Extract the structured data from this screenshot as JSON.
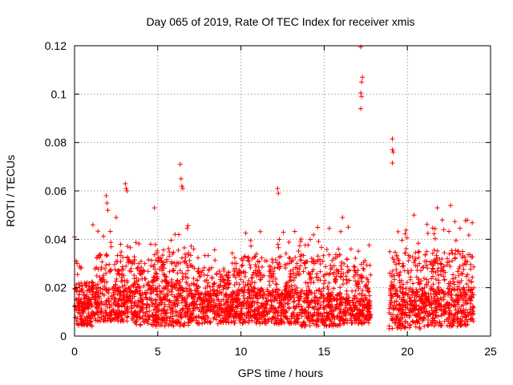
{
  "chart_data": {
    "type": "scatter",
    "title": "Day 065 of 2019, Rate Of TEC Index for receiver xmis",
    "xlabel": "GPS time / hours",
    "ylabel": "ROTI / TECUs",
    "xlim": [
      0,
      25
    ],
    "ylim": [
      0,
      0.12
    ],
    "xticks": [
      0,
      5,
      10,
      15,
      20,
      25
    ],
    "xtick_labels": [
      "0",
      "5",
      "10",
      "15",
      "20",
      "25"
    ],
    "yticks": [
      0,
      0.02,
      0.04,
      0.06,
      0.08,
      0.1,
      0.12
    ],
    "ytick_labels": [
      "0",
      "0.02",
      "0.04",
      "0.06",
      "0.08",
      "0.1",
      "0.12"
    ],
    "grid": true,
    "marker": "plus",
    "color": "#ff0000",
    "series": [
      {
        "name": "ROTI",
        "outliers": [
          [
            0.0,
            0.041
          ],
          [
            0.1,
            0.031
          ],
          [
            0.15,
            0.03
          ],
          [
            1.1,
            0.046
          ],
          [
            1.9,
            0.058
          ],
          [
            1.95,
            0.055
          ],
          [
            2.0,
            0.052
          ],
          [
            2.5,
            0.049
          ],
          [
            3.05,
            0.063
          ],
          [
            3.1,
            0.061
          ],
          [
            3.15,
            0.06
          ],
          [
            4.8,
            0.053
          ],
          [
            6.35,
            0.071
          ],
          [
            6.4,
            0.065
          ],
          [
            6.45,
            0.062
          ],
          [
            6.5,
            0.061
          ],
          [
            12.2,
            0.061
          ],
          [
            12.25,
            0.059
          ],
          [
            16.1,
            0.049
          ],
          [
            16.45,
            0.045
          ],
          [
            17.2,
            0.1195
          ],
          [
            17.3,
            0.107
          ],
          [
            17.25,
            0.105
          ],
          [
            17.2,
            0.1005
          ],
          [
            17.25,
            0.099
          ],
          [
            17.2,
            0.094
          ],
          [
            19.1,
            0.0815
          ],
          [
            19.1,
            0.077
          ],
          [
            19.15,
            0.076
          ],
          [
            19.1,
            0.0715
          ],
          [
            20.4,
            0.05
          ],
          [
            21.8,
            0.053
          ],
          [
            22.1,
            0.048
          ],
          [
            22.6,
            0.054
          ],
          [
            23.6,
            0.048
          ]
        ],
        "segments": [
          {
            "x_range": [
              0,
              1.3
            ],
            "y_base": [
              0.004,
              0.016
            ],
            "y_peak": 0.03
          },
          {
            "x_range": [
              1.3,
              3.5
            ],
            "y_base": [
              0.006,
              0.02
            ],
            "y_peak": 0.045
          },
          {
            "x_range": [
              3.5,
              5.0
            ],
            "y_base": [
              0.004,
              0.02
            ],
            "y_peak": 0.042
          },
          {
            "x_range": [
              5.0,
              7.0
            ],
            "y_base": [
              0.004,
              0.022
            ],
            "y_peak": 0.046
          },
          {
            "x_range": [
              7.0,
              10.0
            ],
            "y_base": [
              0.005,
              0.018
            ],
            "y_peak": 0.038
          },
          {
            "x_range": [
              10.0,
              13.5
            ],
            "y_base": [
              0.005,
              0.02
            ],
            "y_peak": 0.044
          },
          {
            "x_range": [
              13.5,
              16.0
            ],
            "y_base": [
              0.004,
              0.018
            ],
            "y_peak": 0.045
          },
          {
            "x_range": [
              16.0,
              17.8
            ],
            "y_base": [
              0.005,
              0.016
            ],
            "y_peak": 0.04
          },
          {
            "x_range": [
              18.9,
              21.0
            ],
            "y_base": [
              0.003,
              0.02
            ],
            "y_peak": 0.047
          },
          {
            "x_range": [
              21.0,
              24.0
            ],
            "y_base": [
              0.004,
              0.02
            ],
            "y_peak": 0.048
          }
        ]
      }
    ]
  }
}
